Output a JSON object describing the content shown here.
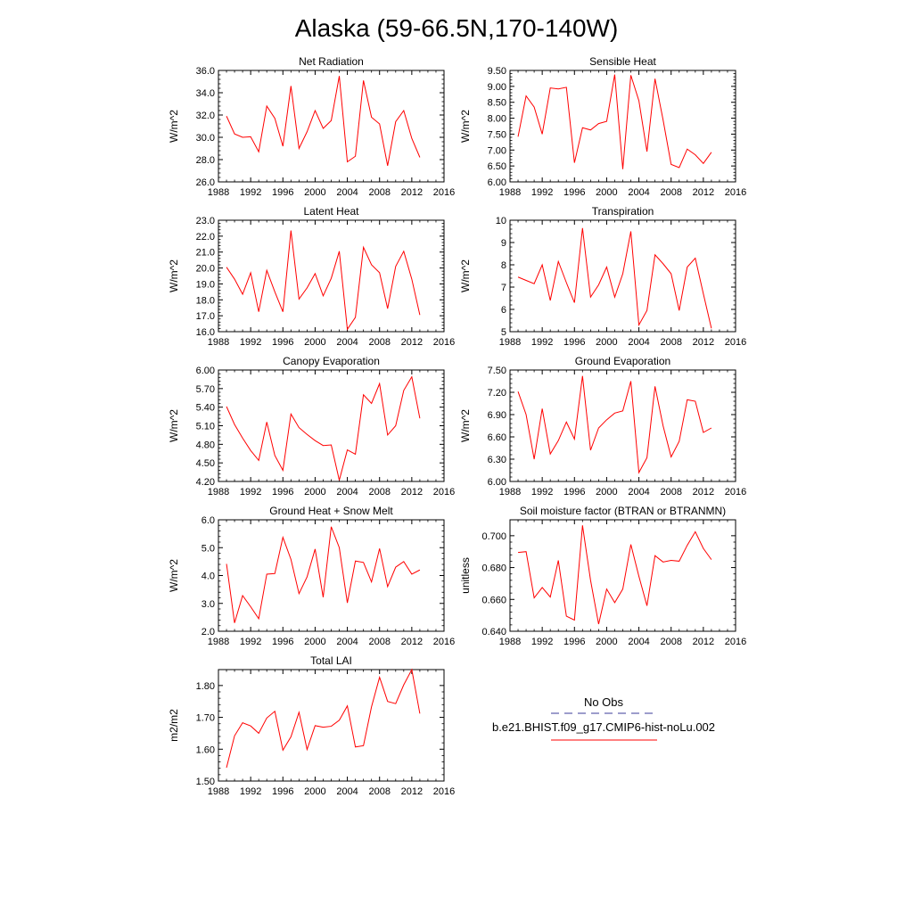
{
  "page_title": "Alaska (59-66.5N,170-140W)",
  "legend": {
    "obs_label": "No Obs",
    "obs_color": "#3b3b9a",
    "model_label": "b.e21.BHIST.f09_g17.CMIP6-hist-noLu.002",
    "model_color": "#ff0000"
  },
  "chart_data": [
    {
      "type": "line",
      "title": "Net Radiation",
      "xlabel": "",
      "ylabel": "W/m^2",
      "xlim": [
        1988,
        2016
      ],
      "x_ticks": [
        1988,
        1992,
        1996,
        2000,
        2004,
        2008,
        2012,
        2016
      ],
      "ylim": [
        26.0,
        36.0
      ],
      "y_ticks": [
        26.0,
        28.0,
        30.0,
        32.0,
        34.0,
        36.0
      ],
      "y_decimals": 1,
      "x": [
        1989,
        1990,
        1991,
        1992,
        1993,
        1994,
        1995,
        1996,
        1997,
        1998,
        1999,
        2000,
        2001,
        2002,
        2003,
        2004,
        2005,
        2006,
        2007,
        2008,
        2009,
        2010,
        2011,
        2012,
        2013
      ],
      "series": [
        {
          "color": "#ff0000",
          "values": [
            31.9,
            30.3,
            30.0,
            30.05,
            28.7,
            32.8,
            31.7,
            29.2,
            34.6,
            29.0,
            30.5,
            32.4,
            30.8,
            31.5,
            35.5,
            27.8,
            28.3,
            35.1,
            31.8,
            31.2,
            27.45,
            31.4,
            32.4,
            29.9,
            28.2
          ]
        }
      ]
    },
    {
      "type": "line",
      "title": "Sensible Heat",
      "xlabel": "",
      "ylabel": "W/m^2",
      "xlim": [
        1988,
        2016
      ],
      "x_ticks": [
        1988,
        1992,
        1996,
        2000,
        2004,
        2008,
        2012,
        2016
      ],
      "ylim": [
        6.0,
        9.5
      ],
      "y_ticks": [
        6.0,
        6.5,
        7.0,
        7.5,
        8.0,
        8.5,
        9.0,
        9.5
      ],
      "y_decimals": 2,
      "x": [
        1989,
        1990,
        1991,
        1992,
        1993,
        1994,
        1995,
        1996,
        1997,
        1998,
        1999,
        2000,
        2001,
        2002,
        2003,
        2004,
        2005,
        2006,
        2007,
        2008,
        2009,
        2010,
        2011,
        2012,
        2013
      ],
      "series": [
        {
          "color": "#ff0000",
          "values": [
            7.42,
            8.7,
            8.35,
            7.5,
            8.95,
            8.92,
            8.97,
            6.6,
            7.7,
            7.63,
            7.83,
            7.9,
            9.37,
            6.4,
            9.35,
            8.55,
            6.95,
            9.24,
            7.95,
            6.55,
            6.45,
            7.03,
            6.85,
            6.58,
            6.93
          ]
        }
      ]
    },
    {
      "type": "line",
      "title": "Latent Heat",
      "xlabel": "",
      "ylabel": "W/m^2",
      "xlim": [
        1988,
        2016
      ],
      "x_ticks": [
        1988,
        1992,
        1996,
        2000,
        2004,
        2008,
        2012,
        2016
      ],
      "ylim": [
        16.0,
        23.0
      ],
      "y_ticks": [
        16.0,
        17.0,
        18.0,
        19.0,
        20.0,
        21.0,
        22.0,
        23.0
      ],
      "y_decimals": 1,
      "x": [
        1989,
        1990,
        1991,
        1992,
        1993,
        1994,
        1995,
        1996,
        1997,
        1998,
        1999,
        2000,
        2001,
        2002,
        2003,
        2004,
        2005,
        2006,
        2007,
        2008,
        2009,
        2010,
        2011,
        2012,
        2013
      ],
      "series": [
        {
          "color": "#ff0000",
          "values": [
            20.05,
            19.3,
            18.35,
            19.7,
            17.25,
            19.85,
            18.5,
            17.25,
            22.35,
            18.05,
            18.75,
            19.65,
            18.25,
            19.35,
            21.05,
            16.15,
            16.9,
            21.3,
            20.2,
            19.7,
            17.45,
            20.1,
            21.05,
            19.3,
            17.05
          ]
        }
      ]
    },
    {
      "type": "line",
      "title": "Transpiration",
      "xlabel": "",
      "ylabel": "W/m^2",
      "xlim": [
        1988,
        2016
      ],
      "x_ticks": [
        1988,
        1992,
        1996,
        2000,
        2004,
        2008,
        2012,
        2016
      ],
      "ylim": [
        5,
        10
      ],
      "y_ticks": [
        5,
        6,
        7,
        8,
        9,
        10
      ],
      "y_decimals": 0,
      "x": [
        1989,
        1990,
        1991,
        1992,
        1993,
        1994,
        1995,
        1996,
        1997,
        1998,
        1999,
        2000,
        2001,
        2002,
        2003,
        2004,
        2005,
        2006,
        2007,
        2008,
        2009,
        2010,
        2011,
        2012,
        2013
      ],
      "series": [
        {
          "color": "#ff0000",
          "values": [
            7.45,
            7.3,
            7.15,
            8.0,
            6.4,
            8.15,
            7.2,
            6.3,
            9.65,
            6.55,
            7.1,
            7.9,
            6.55,
            7.6,
            9.5,
            5.3,
            5.95,
            8.45,
            8.05,
            7.6,
            5.95,
            7.9,
            8.3,
            6.7,
            5.15
          ]
        }
      ]
    },
    {
      "type": "line",
      "title": "Canopy Evaporation",
      "xlabel": "",
      "ylabel": "W/m^2",
      "xlim": [
        1988,
        2016
      ],
      "x_ticks": [
        1988,
        1992,
        1996,
        2000,
        2004,
        2008,
        2012,
        2016
      ],
      "ylim": [
        4.2,
        6.0
      ],
      "y_ticks": [
        4.2,
        4.5,
        4.8,
        5.1,
        5.4,
        5.7,
        6.0
      ],
      "y_decimals": 2,
      "x": [
        1989,
        1990,
        1991,
        1992,
        1993,
        1994,
        1995,
        1996,
        1997,
        1998,
        1999,
        2000,
        2001,
        2002,
        2003,
        2004,
        2005,
        2006,
        2007,
        2008,
        2009,
        2010,
        2011,
        2012,
        2013
      ],
      "series": [
        {
          "color": "#ff0000",
          "values": [
            5.41,
            5.12,
            4.9,
            4.7,
            4.54,
            5.16,
            4.62,
            4.38,
            5.29,
            5.07,
            4.96,
            4.86,
            4.78,
            4.79,
            4.22,
            4.71,
            4.64,
            5.6,
            5.46,
            5.78,
            4.95,
            5.1,
            5.67,
            5.89,
            5.22
          ]
        }
      ]
    },
    {
      "type": "line",
      "title": "Ground Evaporation",
      "xlabel": "",
      "ylabel": "W/m^2",
      "xlim": [
        1988,
        2016
      ],
      "x_ticks": [
        1988,
        1992,
        1996,
        2000,
        2004,
        2008,
        2012,
        2016
      ],
      "ylim": [
        6.0,
        7.5
      ],
      "y_ticks": [
        6.0,
        6.3,
        6.6,
        6.9,
        7.2,
        7.5
      ],
      "y_decimals": 2,
      "x": [
        1989,
        1990,
        1991,
        1992,
        1993,
        1994,
        1995,
        1996,
        1997,
        1998,
        1999,
        2000,
        2001,
        2002,
        2003,
        2004,
        2005,
        2006,
        2007,
        2008,
        2009,
        2010,
        2011,
        2012,
        2013
      ],
      "series": [
        {
          "color": "#ff0000",
          "values": [
            7.21,
            6.9,
            6.3,
            6.98,
            6.37,
            6.55,
            6.8,
            6.57,
            7.42,
            6.42,
            6.72,
            6.83,
            6.92,
            6.95,
            7.35,
            6.12,
            6.32,
            7.28,
            6.75,
            6.33,
            6.54,
            7.1,
            7.08,
            6.66,
            6.72
          ]
        }
      ]
    },
    {
      "type": "line",
      "title": "Ground Heat + Snow Melt",
      "xlabel": "",
      "ylabel": "W/m^2",
      "xlim": [
        1988,
        2016
      ],
      "x_ticks": [
        1988,
        1992,
        1996,
        2000,
        2004,
        2008,
        2012,
        2016
      ],
      "ylim": [
        2.0,
        6.0
      ],
      "y_ticks": [
        2.0,
        3.0,
        4.0,
        5.0,
        6.0
      ],
      "y_decimals": 1,
      "x": [
        1989,
        1990,
        1991,
        1992,
        1993,
        1994,
        1995,
        1996,
        1997,
        1998,
        1999,
        2000,
        2001,
        2002,
        2003,
        2004,
        2005,
        2006,
        2007,
        2008,
        2009,
        2010,
        2011,
        2012,
        2013
      ],
      "series": [
        {
          "color": "#ff0000",
          "values": [
            4.42,
            2.3,
            3.28,
            2.88,
            2.45,
            4.05,
            4.07,
            5.37,
            4.58,
            3.35,
            3.95,
            4.95,
            3.22,
            5.75,
            5.0,
            3.02,
            4.52,
            4.47,
            3.77,
            4.97,
            3.6,
            4.3,
            4.5,
            4.05,
            4.2
          ]
        }
      ]
    },
    {
      "type": "line",
      "title": "Soil moisture factor (BTRAN or BTRANMN)",
      "xlabel": "",
      "ylabel": "unitless",
      "xlim": [
        1988,
        2016
      ],
      "x_ticks": [
        1988,
        1992,
        1996,
        2000,
        2004,
        2008,
        2012,
        2016
      ],
      "ylim": [
        0.64,
        0.71
      ],
      "y_ticks": [
        0.64,
        0.66,
        0.68,
        0.7
      ],
      "y_decimals": 3,
      "x": [
        1989,
        1990,
        1991,
        1992,
        1993,
        1994,
        1995,
        1996,
        1997,
        1998,
        1999,
        2000,
        2001,
        2002,
        2003,
        2004,
        2005,
        2006,
        2007,
        2008,
        2009,
        2010,
        2011,
        2012,
        2013
      ],
      "series": [
        {
          "color": "#ff0000",
          "values": [
            0.6895,
            0.69,
            0.661,
            0.6675,
            0.6615,
            0.6845,
            0.6495,
            0.647,
            0.7065,
            0.672,
            0.6445,
            0.6665,
            0.658,
            0.6665,
            0.6945,
            0.6745,
            0.656,
            0.6875,
            0.6835,
            0.6845,
            0.684,
            0.694,
            0.7025,
            0.692,
            0.685
          ]
        }
      ]
    },
    {
      "type": "line",
      "title": "Total LAI",
      "xlabel": "",
      "ylabel": "m2/m2",
      "xlim": [
        1988,
        2016
      ],
      "x_ticks": [
        1988,
        1992,
        1996,
        2000,
        2004,
        2008,
        2012,
        2016
      ],
      "ylim": [
        1.5,
        1.85
      ],
      "y_ticks": [
        1.5,
        1.6,
        1.7,
        1.8
      ],
      "y_decimals": 2,
      "x": [
        1989,
        1990,
        1991,
        1992,
        1993,
        1994,
        1995,
        1996,
        1997,
        1998,
        1999,
        2000,
        2001,
        2002,
        2003,
        2004,
        2005,
        2006,
        2007,
        2008,
        2009,
        2010,
        2011,
        2012,
        2013
      ],
      "series": [
        {
          "color": "#ff0000",
          "values": [
            1.542,
            1.642,
            1.683,
            1.673,
            1.65,
            1.698,
            1.719,
            1.597,
            1.639,
            1.716,
            1.599,
            1.674,
            1.669,
            1.672,
            1.691,
            1.736,
            1.607,
            1.611,
            1.733,
            1.826,
            1.75,
            1.743,
            1.802,
            1.85,
            1.712
          ]
        }
      ]
    }
  ]
}
